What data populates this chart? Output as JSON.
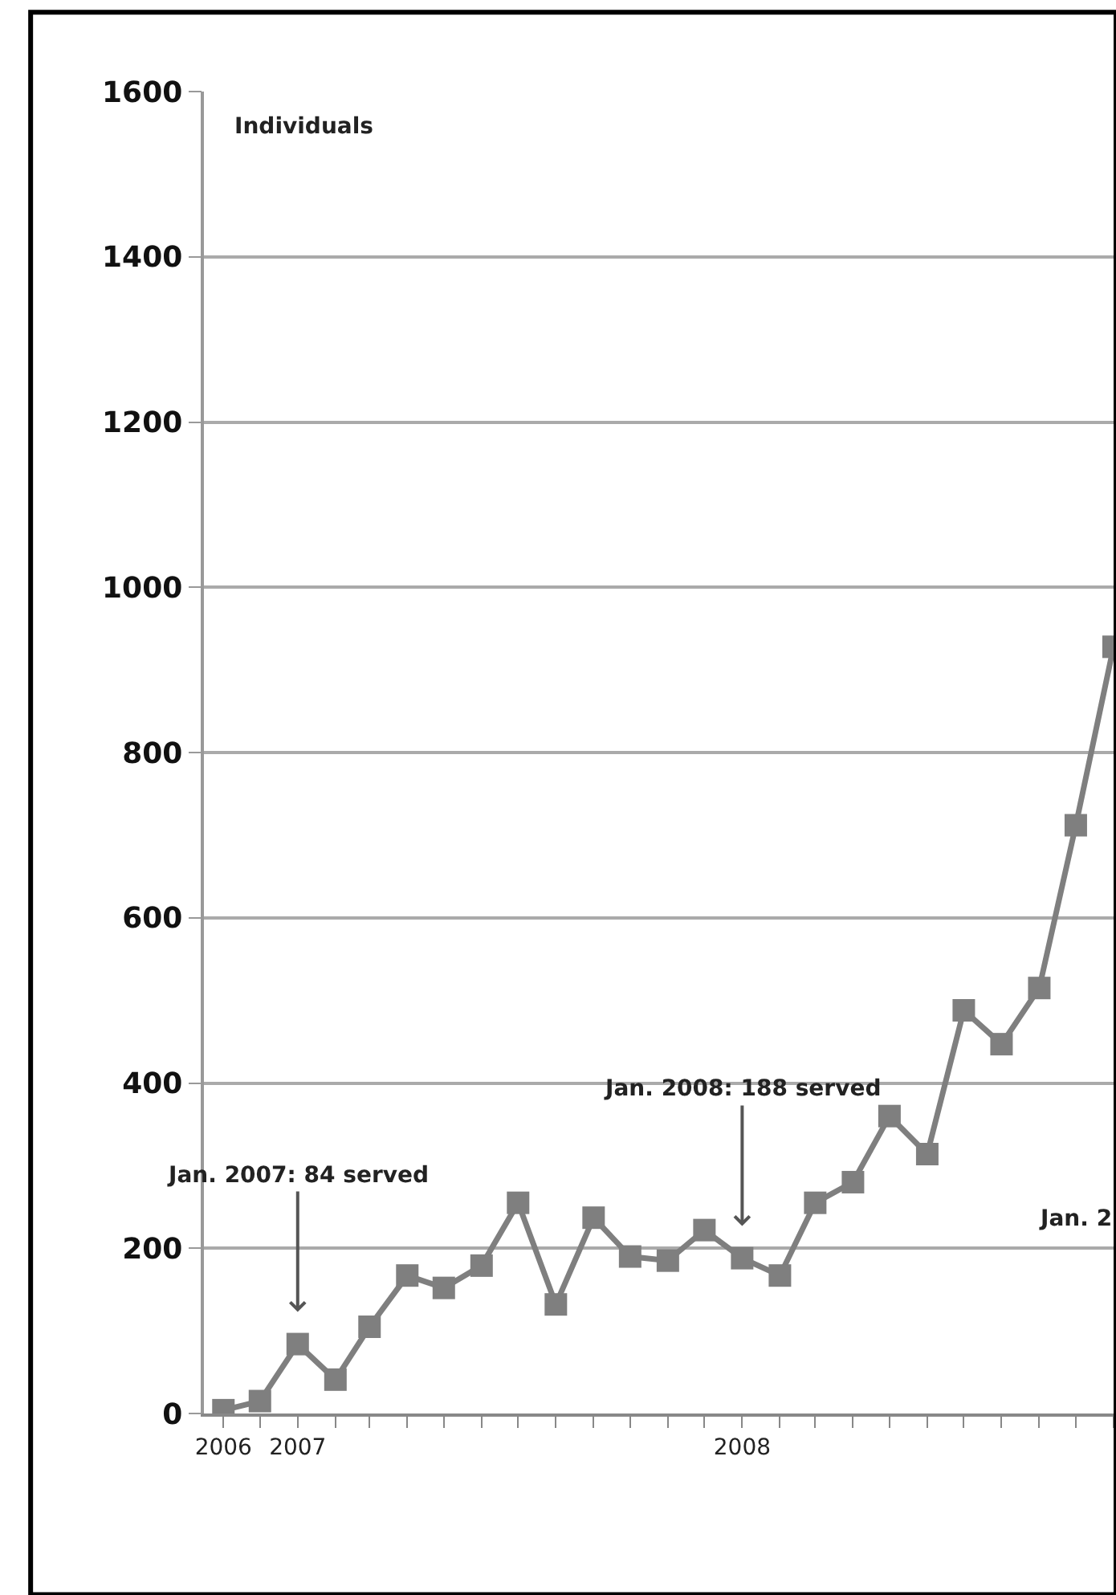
{
  "chart_data": {
    "type": "line",
    "ylabel": "Individuals",
    "x": [
      "2006-11",
      "2006-12",
      "2007-01",
      "2007-02",
      "2007-03",
      "2007-04",
      "2007-05",
      "2007-06",
      "2007-07",
      "2007-08",
      "2007-09",
      "2007-10",
      "2007-11",
      "2007-12",
      "2008-01",
      "2008-02",
      "2008-03",
      "2008-04",
      "2008-05",
      "2008-06",
      "2008-07",
      "2008-08",
      "2008-09",
      "2008-10",
      "2008-11"
    ],
    "series": [
      {
        "color": "#7f7f7f",
        "values": [
          4,
          15,
          84,
          41,
          105,
          167,
          152,
          179,
          255,
          132,
          237,
          190,
          185,
          222,
          188,
          167,
          255,
          280,
          360,
          314,
          488,
          447,
          515,
          712,
          928
        ]
      }
    ],
    "xlim": [
      "2006-10-16",
      "2008-11-03"
    ],
    "xticks": [
      {
        "value": "2006-11",
        "label": "2006"
      },
      {
        "value": "2006-12",
        "label": null
      },
      {
        "value": "2007-01",
        "label": "2007"
      },
      {
        "value": "2007-02",
        "label": null
      },
      {
        "value": "2007-03",
        "label": null
      },
      {
        "value": "2007-04",
        "label": null
      },
      {
        "value": "2007-05",
        "label": null
      },
      {
        "value": "2007-06",
        "label": null
      },
      {
        "value": "2007-07",
        "label": null
      },
      {
        "value": "2007-08",
        "label": null
      },
      {
        "value": "2007-09",
        "label": null
      },
      {
        "value": "2007-10",
        "label": null
      },
      {
        "value": "2007-11",
        "label": null
      },
      {
        "value": "2007-12",
        "label": null
      },
      {
        "value": "2008-01",
        "label": "2008"
      },
      {
        "value": "2008-02",
        "label": null
      },
      {
        "value": "2008-03",
        "label": null
      },
      {
        "value": "2008-04",
        "label": null
      },
      {
        "value": "2008-05",
        "label": null
      },
      {
        "value": "2008-06",
        "label": null
      },
      {
        "value": "2008-07",
        "label": null
      },
      {
        "value": "2008-08",
        "label": null
      },
      {
        "value": "2008-09",
        "label": null
      },
      {
        "value": "2008-10",
        "label": null
      },
      {
        "value": "2008-11",
        "label": null
      }
    ],
    "ylim": [
      0,
      1600
    ],
    "yticks": [
      0,
      200,
      400,
      600,
      800,
      1000,
      1200,
      1400,
      1600
    ],
    "grid": "y",
    "marker": "square",
    "line_style": "solid",
    "annotations": [
      {
        "text": "Jan. 2007: 84 served",
        "x": "2007-01",
        "y": 84
      },
      {
        "text": "Jan. 2008: 188 served",
        "x": "2008-01",
        "y": 188
      },
      "Jan. 2"
    ]
  }
}
